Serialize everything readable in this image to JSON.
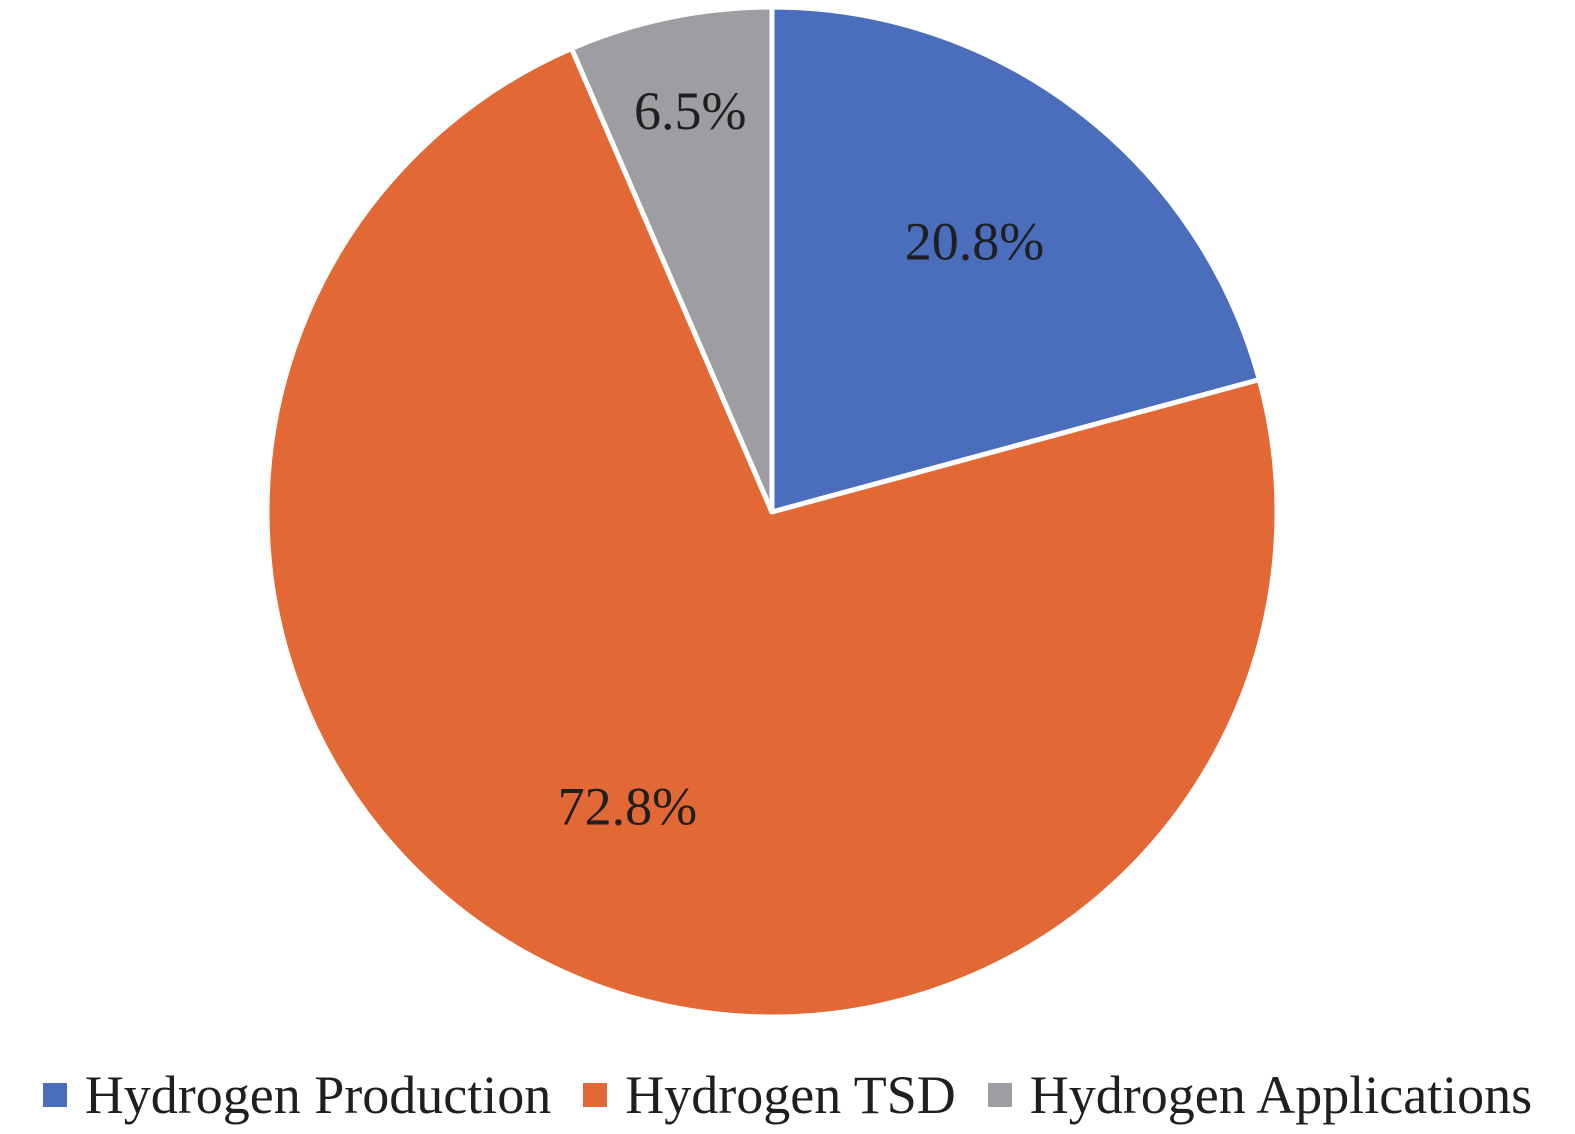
{
  "chart_data": {
    "type": "pie",
    "title": "",
    "categories": [
      "Hydrogen Production",
      "Hydrogen TSD",
      "Hydrogen Applications"
    ],
    "values": [
      20.8,
      72.8,
      6.5
    ],
    "value_labels": [
      "20.8%",
      "72.8%",
      "6.5%"
    ],
    "colors": [
      "#4a6dbc",
      "#e26836",
      "#9e9ea2"
    ],
    "start_angle_deg": 0,
    "direction": "clockwise",
    "legend_position": "bottom"
  }
}
